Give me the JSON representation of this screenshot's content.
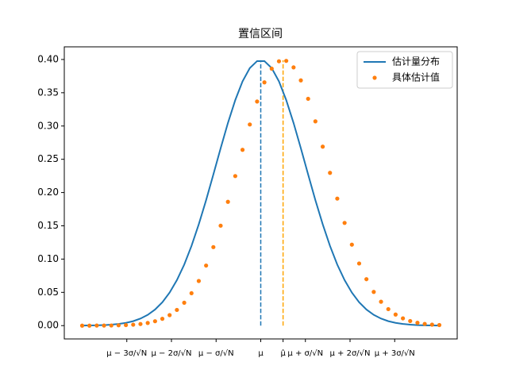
{
  "chart_data": {
    "type": "line_scatter",
    "title": "置信区间",
    "x": [
      -4.0,
      -3.837,
      -3.673,
      -3.51,
      -3.347,
      -3.184,
      -3.02,
      -2.857,
      -2.694,
      -2.531,
      -2.367,
      -2.204,
      -2.041,
      -1.878,
      -1.714,
      -1.551,
      -1.388,
      -1.224,
      -1.061,
      -0.898,
      -0.735,
      -0.571,
      -0.408,
      -0.245,
      -0.082,
      0.082,
      0.245,
      0.408,
      0.571,
      0.735,
      0.898,
      1.061,
      1.224,
      1.388,
      1.551,
      1.714,
      1.878,
      2.041,
      2.204,
      2.367,
      2.531,
      2.694,
      2.857,
      3.02,
      3.184,
      3.347,
      3.51,
      3.673,
      3.837,
      4.0
    ],
    "series": [
      {
        "name": "估计量分布",
        "kind": "line",
        "color": "#1f77b4",
        "values": [
          0.0001,
          0.0003,
          0.0005,
          0.0008,
          0.0015,
          0.0025,
          0.0042,
          0.0067,
          0.0106,
          0.0162,
          0.0242,
          0.0351,
          0.0497,
          0.0684,
          0.0917,
          0.1198,
          0.1523,
          0.1885,
          0.2272,
          0.2666,
          0.3046,
          0.3389,
          0.3671,
          0.3871,
          0.3976,
          0.3976,
          0.3871,
          0.3671,
          0.3389,
          0.3046,
          0.2666,
          0.2272,
          0.1885,
          0.1523,
          0.1198,
          0.0917,
          0.0684,
          0.0497,
          0.0351,
          0.0242,
          0.0162,
          0.0106,
          0.0067,
          0.0042,
          0.0025,
          0.0015,
          0.0008,
          0.0005,
          0.0003,
          0.0001
        ]
      },
      {
        "name": "具体估计值",
        "kind": "scatter",
        "color": "#ff7f0e",
        "values": [
          0.0,
          0.0,
          0.0001,
          0.0001,
          0.0002,
          0.0005,
          0.0008,
          0.0014,
          0.0024,
          0.004,
          0.0066,
          0.0103,
          0.0158,
          0.0236,
          0.0344,
          0.0487,
          0.0671,
          0.0903,
          0.118,
          0.1502,
          0.1861,
          0.2248,
          0.2642,
          0.3023,
          0.3368,
          0.3656,
          0.3862,
          0.3973,
          0.3979,
          0.3881,
          0.3686,
          0.3409,
          0.307,
          0.269,
          0.2296,
          0.1909,
          0.1544,
          0.1217,
          0.0934,
          0.0698,
          0.0507,
          0.0359,
          0.0248,
          0.0167,
          0.0109,
          0.0069,
          0.0043,
          0.0026,
          0.0015,
          0.0009
        ]
      }
    ],
    "vlines": [
      {
        "x": 0,
        "top": 0.3989,
        "color": "#1f77b4"
      },
      {
        "x": 0.5,
        "top": 0.3989,
        "color": "#ffa500"
      }
    ],
    "xlim": [
      -4.4,
      4.4
    ],
    "ylim": [
      -0.02,
      0.419
    ],
    "xticks": [
      {
        "value": -3,
        "label": "μ − 3σ/√N"
      },
      {
        "value": -2,
        "label": "μ − 2σ/√N"
      },
      {
        "value": -1,
        "label": "μ − σ/√N"
      },
      {
        "value": 0,
        "label": "μ"
      },
      {
        "value": 0.5,
        "label": "μ̂"
      },
      {
        "value": 1,
        "label": "μ + σ/√N"
      },
      {
        "value": 2,
        "label": "μ + 2σ/√N"
      },
      {
        "value": 3,
        "label": "μ + 3σ/√N"
      }
    ],
    "yticks": [
      {
        "value": 0,
        "label": "0.00"
      },
      {
        "value": 0.05,
        "label": "0.05"
      },
      {
        "value": 0.1,
        "label": "0.10"
      },
      {
        "value": 0.15,
        "label": "0.15"
      },
      {
        "value": 0.2,
        "label": "0.20"
      },
      {
        "value": 0.25,
        "label": "0.25"
      },
      {
        "value": 0.3,
        "label": "0.30"
      },
      {
        "value": 0.35,
        "label": "0.35"
      },
      {
        "value": 0.4,
        "label": "0.40"
      }
    ],
    "legend": "upper right"
  }
}
